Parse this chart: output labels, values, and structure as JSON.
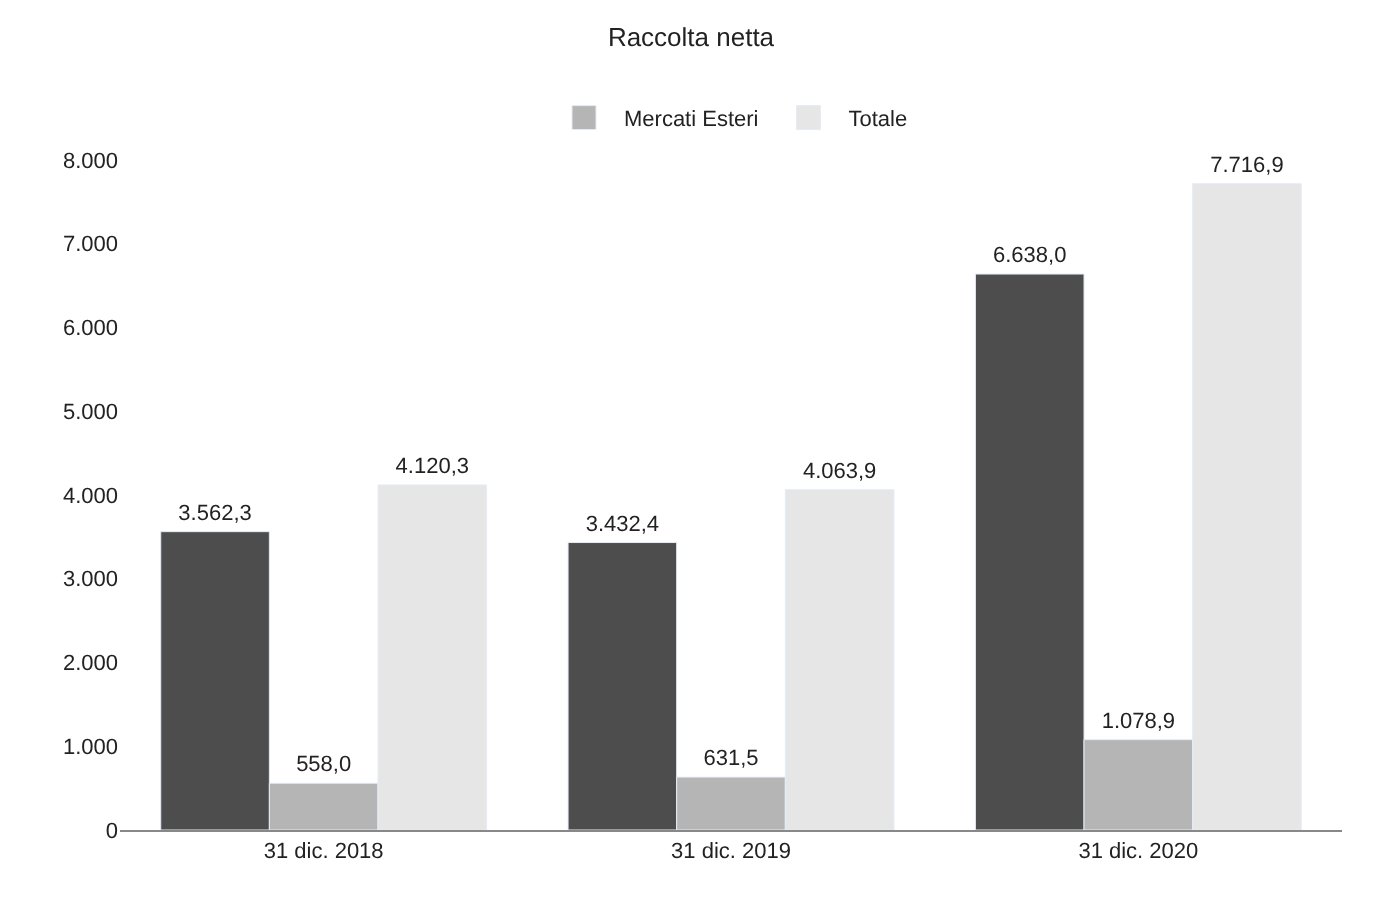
{
  "chart_data": {
    "type": "bar",
    "title": "Raccolta netta",
    "categories": [
      "31 dic. 2018",
      "31 dic. 2019",
      "31 dic. 2020"
    ],
    "series": [
      {
        "color": "#4d4d4d",
        "values": [
          3562.3,
          3432.4,
          6638.0
        ],
        "value_labels": [
          "3.562,3",
          "3.432,4",
          "6.638,0"
        ]
      },
      {
        "name": "Mercati Esteri",
        "color": "#b5b5b5",
        "values": [
          558.0,
          631.5,
          1078.9
        ],
        "value_labels": [
          "558,0",
          "631,5",
          "1.078,9"
        ]
      },
      {
        "name": "Totale",
        "color": "#e6e6e6",
        "values": [
          4120.3,
          4063.9,
          7716.9
        ],
        "value_labels": [
          "4.120,3",
          "4.063,9",
          "7.716,9"
        ]
      }
    ],
    "ylim": [
      0,
      8000
    ],
    "yticks": [
      {
        "value": 0,
        "label": "0"
      },
      {
        "value": 1000,
        "label": "1.000"
      },
      {
        "value": 2000,
        "label": "2.000"
      },
      {
        "value": 3000,
        "label": "3.000"
      },
      {
        "value": 4000,
        "label": "4.000"
      },
      {
        "value": 5000,
        "label": "5.000"
      },
      {
        "value": 6000,
        "label": "6.000"
      },
      {
        "value": 7000,
        "label": "7.000"
      },
      {
        "value": 8000,
        "label": "8.000"
      }
    ],
    "legend": "top"
  }
}
